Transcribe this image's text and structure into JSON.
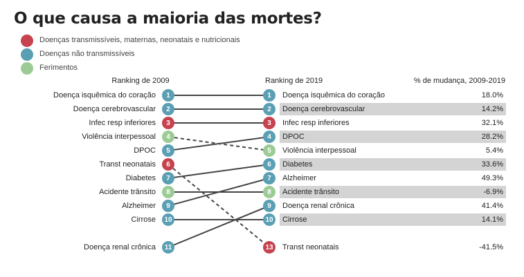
{
  "title": "O que causa a maioria das mortes?",
  "colors": {
    "communicable": "#c6424e",
    "noncommunicable": "#5a9fb3",
    "injuries": "#9dcb96",
    "line": "#444444",
    "stripe": "#d4d4d4"
  },
  "legend": [
    {
      "label": "Doenças transmissíveis, maternas, neonatais e nutricionais",
      "color": "#c6424e"
    },
    {
      "label": "Doenças não transmissíveis",
      "color": "#5a9fb3"
    },
    {
      "label": "Ferimentos",
      "color": "#9dcb96"
    }
  ],
  "chart_data": {
    "type": "slope",
    "left_header": "Ranking de 2009",
    "right_header": "Ranking de 2019",
    "change_header": "% de mudança, 2009-2019",
    "items": [
      {
        "name_2009": "Doença isquêmica do coração",
        "rank_2009": 1,
        "rank_2019": 1,
        "name_2019": "Doença isquêmica do coração",
        "change": "18.0%",
        "category": "noncommunicable",
        "dashed": false,
        "shaded": false
      },
      {
        "name_2009": "Doença cerebrovascular",
        "rank_2009": 2,
        "rank_2019": 2,
        "name_2019": "Doença cerebrovascular",
        "change": "14.2%",
        "category": "noncommunicable",
        "dashed": false,
        "shaded": true
      },
      {
        "name_2009": "Infec resp inferiores",
        "rank_2009": 3,
        "rank_2019": 3,
        "name_2019": "Infec resp inferiores",
        "change": "32.1%",
        "category": "communicable",
        "dashed": false,
        "shaded": false
      },
      {
        "name_2009": "Violência interpessoal",
        "rank_2009": 4,
        "rank_2019": 5,
        "name_2019": "Violência interpessoal",
        "change": "5.4%",
        "category": "injuries",
        "dashed": true,
        "shaded": false
      },
      {
        "name_2009": "DPOC",
        "rank_2009": 5,
        "rank_2019": 4,
        "name_2019": "DPOC",
        "change": "28.2%",
        "category": "noncommunicable",
        "dashed": false,
        "shaded": true
      },
      {
        "name_2009": "Transt neonatais",
        "rank_2009": 6,
        "rank_2019": 13,
        "name_2019": "Transt neonatais",
        "change": "-41.5%",
        "category": "communicable",
        "dashed": true,
        "shaded": false
      },
      {
        "name_2009": "Diabetes",
        "rank_2009": 7,
        "rank_2019": 6,
        "name_2019": "Diabetes",
        "change": "33.6%",
        "category": "noncommunicable",
        "dashed": false,
        "shaded": true
      },
      {
        "name_2009": "Acidente trânsito",
        "rank_2009": 8,
        "rank_2019": 8,
        "name_2019": "Acidente trânsito",
        "change": "-6.9%",
        "category": "injuries",
        "dashed": false,
        "shaded": true
      },
      {
        "name_2009": "Alzheimer",
        "rank_2009": 9,
        "rank_2019": 7,
        "name_2019": "Alzheimer",
        "change": "49.3%",
        "category": "noncommunicable",
        "dashed": false,
        "shaded": false
      },
      {
        "name_2009": "Cirrose",
        "rank_2009": 10,
        "rank_2019": 10,
        "name_2019": "Cirrose",
        "change": "14.1%",
        "category": "noncommunicable",
        "dashed": false,
        "shaded": true
      },
      {
        "name_2009": "Doença renal crônica",
        "rank_2009": 11,
        "rank_2019": 9,
        "name_2019": "Doença renal crônica",
        "change": "41.4%",
        "category": "noncommunicable",
        "dashed": false,
        "shaded": false
      }
    ]
  }
}
